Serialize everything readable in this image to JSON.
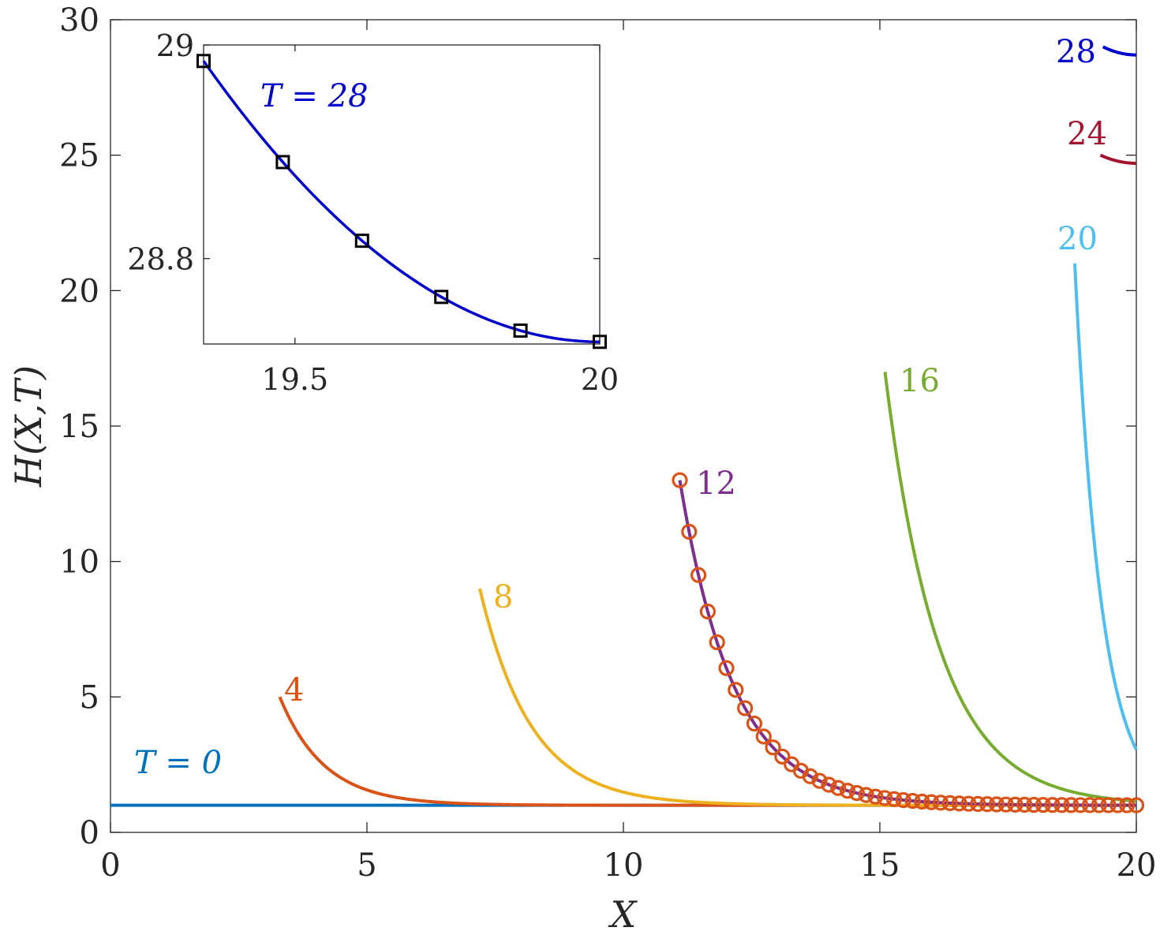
{
  "chart_data": {
    "type": "line",
    "xlabel": "X",
    "ylabel": "H(X,T)",
    "xlim": [
      0,
      20
    ],
    "ylim": [
      0,
      30
    ],
    "xticks": [
      0,
      5,
      10,
      15,
      20
    ],
    "yticks": [
      0,
      5,
      10,
      15,
      20,
      25,
      30
    ],
    "series": [
      {
        "name": "T = 0",
        "color": "#0072BD",
        "x0": 0,
        "h0": 1,
        "decay": 0
      },
      {
        "name": "4",
        "color": "#D95319",
        "x0": 3.3,
        "h0": 5,
        "decay": 1.15
      },
      {
        "name": "8",
        "color": "#EDB120",
        "x0": 7.2,
        "h0": 9,
        "decay": 1.0
      },
      {
        "name": "12",
        "color": "#7E2F8E",
        "x0": 11.1,
        "h0": 13,
        "decay": 0.95
      },
      {
        "name": "16",
        "color": "#77AC30",
        "x0": 15.1,
        "h0": 17,
        "decay": 0.95
      },
      {
        "name": "20",
        "color": "#4DBEEE",
        "x0": 18.8,
        "h0": 21,
        "decay": 1.9
      },
      {
        "name": "24",
        "color": "#A2142F",
        "x0": 19.3,
        "h0": 25,
        "x_end": 20,
        "h_end": 24.7
      },
      {
        "name": "28",
        "color": "#0000CC",
        "x0": 19.35,
        "h0": 29,
        "x_end": 20,
        "h_end": 28.7
      }
    ],
    "markers": {
      "series": "12",
      "symbol": "circle",
      "color": "#D95319",
      "x_start": 11.1,
      "x_end": 20,
      "count": 50
    },
    "labels": {
      "t0": "T = 0",
      "s4": "4",
      "s8": "8",
      "s12": "12",
      "s16": "16",
      "s20": "20",
      "s24": "24",
      "s28": "28"
    },
    "inset": {
      "label": "T = 28",
      "xlim": [
        19.35,
        20
      ],
      "ylim": [
        28.72,
        29
      ],
      "xticks": [
        19.5,
        20
      ],
      "yticks": [
        28.8,
        29
      ],
      "curve": {
        "x0": 19.35,
        "h0": 28.985,
        "x_end": 20,
        "h_end": 28.722
      },
      "squares_x": [
        19.35,
        19.48,
        19.61,
        19.74,
        19.87,
        20
      ]
    }
  }
}
